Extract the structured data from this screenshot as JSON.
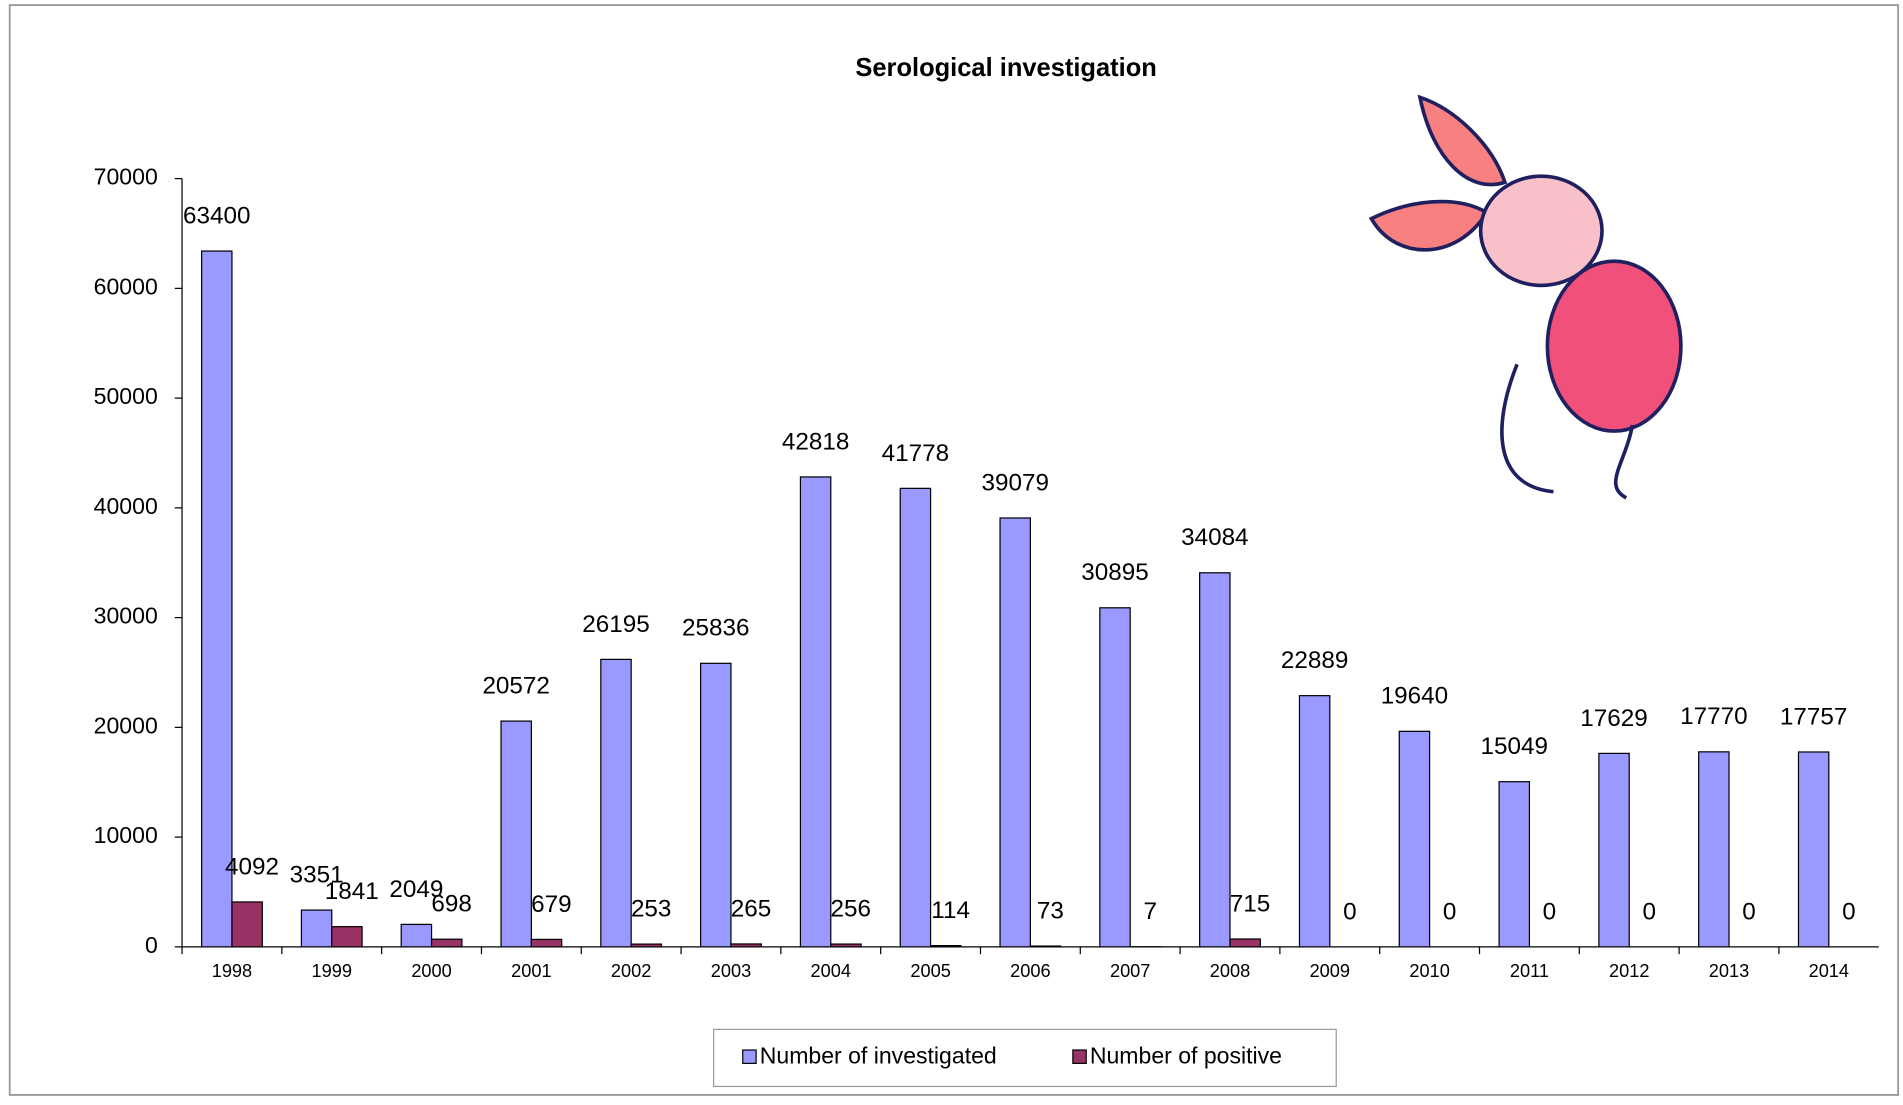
{
  "chart_data": {
    "type": "bar",
    "title": "Serological investigation",
    "categories": [
      "1998",
      "1999",
      "2000",
      "2001",
      "2002",
      "2003",
      "2004",
      "2005",
      "2006",
      "2007",
      "2008",
      "2009",
      "2010",
      "2011",
      "2012",
      "2013",
      "2014"
    ],
    "series": [
      {
        "name": "Number of investigated",
        "color": "#9999ff",
        "values": [
          63400,
          3351,
          2049,
          20572,
          26195,
          25836,
          42818,
          41778,
          39079,
          30895,
          34084,
          22889,
          19640,
          15049,
          17629,
          17770,
          17757
        ]
      },
      {
        "name": "Number of positive",
        "color": "#993366",
        "values": [
          4092,
          1841,
          698,
          679,
          253,
          265,
          256,
          114,
          73,
          7,
          715,
          0,
          0,
          0,
          0,
          0,
          0
        ]
      }
    ],
    "ylim": [
      0,
      70000
    ],
    "yticks": [
      0,
      10000,
      20000,
      30000,
      40000,
      50000,
      60000,
      70000
    ],
    "legend": "bottom"
  }
}
